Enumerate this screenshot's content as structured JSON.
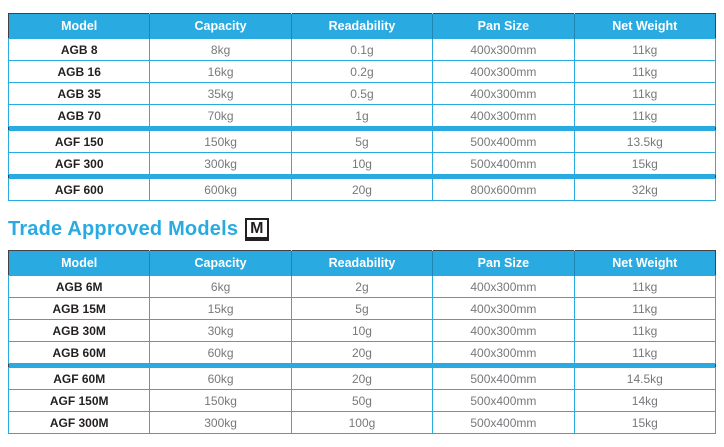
{
  "colors": {
    "accent_blue": "#29ABE2",
    "model_text": "#231F20",
    "value_text": "#77787B",
    "outer_border": "#414042",
    "header_text": "#FFFFFF"
  },
  "heading": {
    "text": "Trade Approved Models",
    "symbol": "M"
  },
  "table1": {
    "headers": [
      "Model",
      "Capacity",
      "Readability",
      "Pan Size",
      "Net Weight"
    ],
    "rows": [
      [
        "AGB 8",
        "8kg",
        "0.1g",
        "400x300mm",
        "11kg"
      ],
      [
        "AGB 16",
        "16kg",
        "0.2g",
        "400x300mm",
        "11kg"
      ],
      [
        "AGB 35",
        "35kg",
        "0.5g",
        "400x300mm",
        "11kg"
      ],
      [
        "AGB 70",
        "70kg",
        "1g",
        "400x300mm",
        "11kg"
      ],
      [
        "AGF 150",
        "150kg",
        "5g",
        "500x400mm",
        "13.5kg"
      ],
      [
        "AGF 300",
        "300kg",
        "10g",
        "500x400mm",
        "15kg"
      ],
      [
        "AGF 600",
        "600kg",
        "20g",
        "800x600mm",
        "32kg"
      ]
    ],
    "separators_after": [
      3,
      5
    ]
  },
  "table2": {
    "headers": [
      "Model",
      "Capacity",
      "Readability",
      "Pan Size",
      "Net Weight"
    ],
    "rows": [
      [
        "AGB 6M",
        "6kg",
        "2g",
        "400x300mm",
        "11kg"
      ],
      [
        "AGB 15M",
        "15kg",
        "5g",
        "400x300mm",
        "11kg"
      ],
      [
        "AGB 30M",
        "30kg",
        "10g",
        "400x300mm",
        "11kg"
      ],
      [
        "AGB 60M",
        "60kg",
        "20g",
        "400x300mm",
        "11kg"
      ],
      [
        "AGF 60M",
        "60kg",
        "20g",
        "500x400mm",
        "14.5kg"
      ],
      [
        "AGF 150M",
        "150kg",
        "50g",
        "500x400mm",
        "14kg"
      ],
      [
        "AGF 300M",
        "300kg",
        "100g",
        "500x400mm",
        "15kg"
      ]
    ],
    "separators_after": [
      3
    ]
  }
}
